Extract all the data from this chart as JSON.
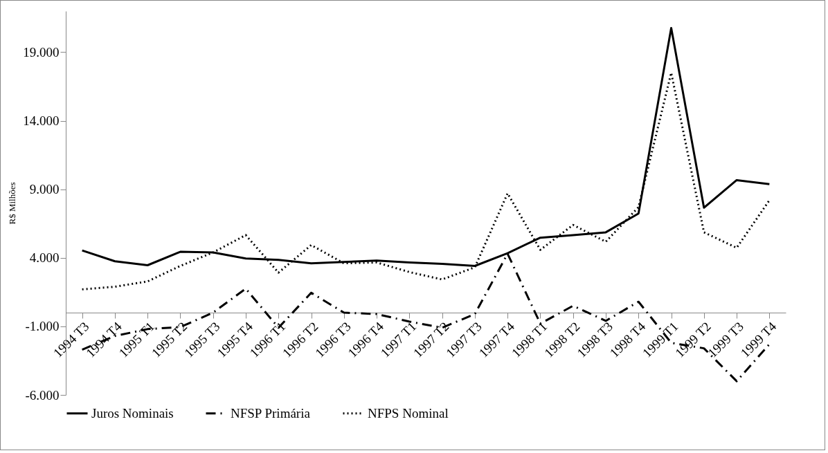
{
  "chart_data": {
    "type": "line",
    "ylabel": "R$ Milhões",
    "categories": [
      "1994 T3",
      "1994 T4",
      "1995 T1",
      "1995 T2",
      "1995 T3",
      "1995 T4",
      "1996 T1",
      "1996 T2",
      "1996 T3",
      "1996 T4",
      "1997 T1",
      "1997 T2",
      "1997 T3",
      "1997 T4",
      "1998 T1",
      "1998 T2",
      "1998 T3",
      "1998 T4",
      "1999 T1",
      "1999 T2",
      "1999 T3",
      "1999 T4"
    ],
    "series": [
      {
        "name": "Juros Nominais",
        "color": "#000000",
        "line_style": "solid",
        "values": [
          4540,
          3750,
          3460,
          4440,
          4390,
          3950,
          3850,
          3600,
          3700,
          3800,
          3660,
          3560,
          3410,
          4340,
          5470,
          5660,
          5860,
          7230,
          20760,
          7660,
          9670,
          9380
        ]
      },
      {
        "name": "NFSP Primária",
        "color": "#000000",
        "line_style": "dashdot",
        "values": [
          -2700,
          -1700,
          -1200,
          -1050,
          0,
          1750,
          -1100,
          1450,
          0,
          -100,
          -650,
          -1100,
          -100,
          4300,
          -800,
          500,
          -600,
          800,
          -2200,
          -2600,
          -5000,
          -2300
        ]
      },
      {
        "name": "NFPS Nominal",
        "color": "#000000",
        "line_style": "dotted",
        "values": [
          1700,
          1890,
          2280,
          3410,
          4390,
          5660,
          2920,
          4930,
          3600,
          3660,
          2960,
          2420,
          3310,
          8700,
          4580,
          6400,
          5170,
          7700,
          17500,
          5860,
          4730,
          8200
        ]
      }
    ],
    "ylim": [
      -6000,
      22000
    ],
    "yticks": [
      {
        "value": -6000,
        "label": "-6.000"
      },
      {
        "value": -1000,
        "label": "-1.000"
      },
      {
        "value": 4000,
        "label": "4.000"
      },
      {
        "value": 9000,
        "label": "9.000"
      },
      {
        "value": 14000,
        "label": "14.000"
      },
      {
        "value": 19000,
        "label": "19.000"
      }
    ],
    "grid": false,
    "legend": "bottom",
    "marker": "none"
  }
}
